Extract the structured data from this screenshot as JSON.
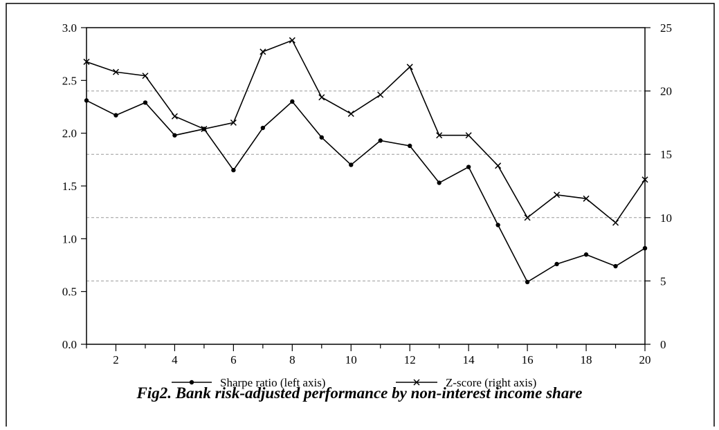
{
  "figure": {
    "caption": "Fig2. Bank risk-adjusted performance by non-interest income share"
  },
  "chart_data": {
    "type": "line",
    "x": [
      1,
      2,
      3,
      4,
      5,
      6,
      7,
      8,
      9,
      10,
      11,
      12,
      13,
      14,
      15,
      16,
      17,
      18,
      19,
      20
    ],
    "x_ticks": [
      2,
      4,
      6,
      8,
      10,
      12,
      14,
      16,
      18,
      20
    ],
    "x_tick_labels": [
      "2",
      "4",
      "6",
      "8",
      "10",
      "12",
      "14",
      "16",
      "18",
      "20"
    ],
    "xlim": [
      1,
      20
    ],
    "left_axis": {
      "ylim": [
        0.0,
        3.0
      ],
      "ticks": [
        "0.0",
        "0.5",
        "1.0",
        "1.5",
        "2.0",
        "2.5",
        "3.0"
      ]
    },
    "right_axis": {
      "ylim": [
        0,
        25
      ],
      "ticks": [
        "0",
        "5",
        "10",
        "15",
        "20",
        "25"
      ]
    },
    "grid": {
      "horizontal_dashed": true,
      "right_axis_values": [
        5,
        10,
        15,
        20
      ]
    },
    "legend_placement": "bottom",
    "series": [
      {
        "name": "Sharpe ratio (left axis)",
        "axis": "left",
        "marker": "dot",
        "color": "#000000",
        "values": [
          2.31,
          2.17,
          2.29,
          1.98,
          2.04,
          1.65,
          2.05,
          2.3,
          1.96,
          1.7,
          1.93,
          1.88,
          1.53,
          1.68,
          1.13,
          0.59,
          0.76,
          0.85,
          0.74,
          0.91
        ]
      },
      {
        "name": "Z-score (right axis)",
        "axis": "right",
        "marker": "x",
        "color": "#000000",
        "values": [
          22.3,
          21.5,
          21.2,
          18.0,
          17.0,
          17.5,
          23.1,
          24.0,
          19.5,
          18.2,
          19.7,
          21.9,
          16.5,
          16.5,
          14.1,
          10.0,
          11.8,
          11.5,
          9.6,
          13.0
        ]
      }
    ]
  }
}
